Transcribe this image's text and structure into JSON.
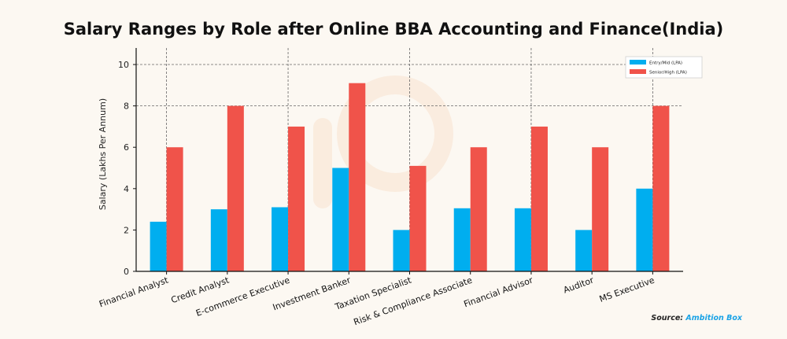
{
  "chart_data": {
    "type": "bar",
    "title": "Salary Ranges by Role after Online BBA Accounting and Finance(India)",
    "ylabel": "Salary (Lakhs Per Annum)",
    "xlabel": "",
    "ylim": [
      0,
      10.8
    ],
    "yticks": [
      0,
      2,
      4,
      6,
      8,
      10
    ],
    "grid": "dashed horizontal at 8 and 10; dashed vertical at every other category",
    "legend_position": "top-right",
    "categories": [
      "Financial Analyst",
      "Credit Analyst",
      "E-commerce Executive",
      "Investment Banker",
      "Taxation Specialist",
      "Risk & Compliance Associate",
      "Financial Advisor",
      "Auditor",
      "MS Executive"
    ],
    "series": [
      {
        "name": "Entry/Mid (LPA)",
        "color": "#00aeef",
        "values": [
          2.4,
          3.0,
          3.1,
          5.0,
          2.0,
          3.05,
          3.05,
          2.0,
          4.0
        ]
      },
      {
        "name": "Senior/High (LPA)",
        "color": "#f0534a",
        "values": [
          6.0,
          8.0,
          7.0,
          9.1,
          5.1,
          6.0,
          7.0,
          6.0,
          8.0
        ]
      }
    ],
    "source_label": "Source:",
    "source_name": "Ambition Box"
  }
}
